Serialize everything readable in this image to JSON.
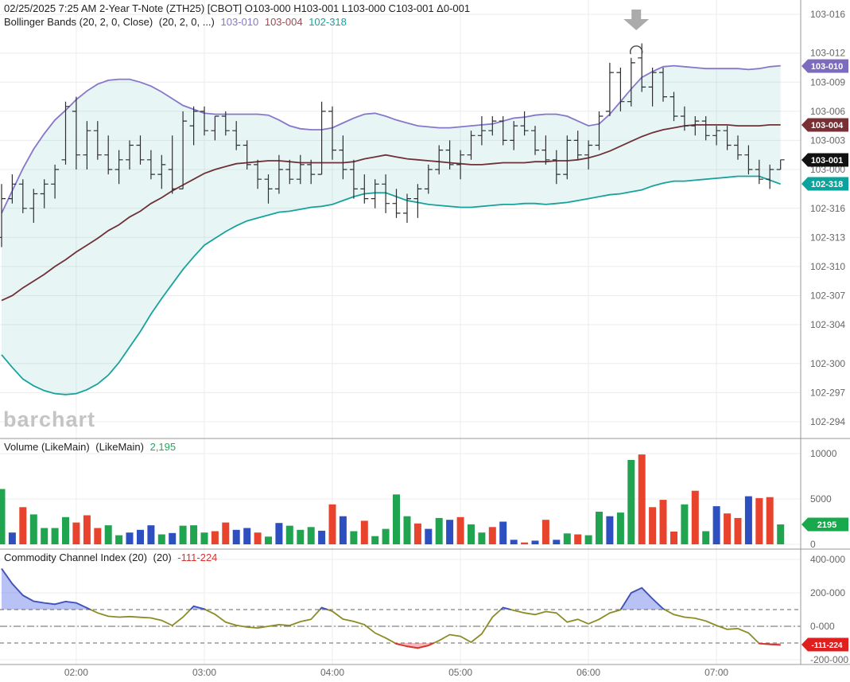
{
  "header": {
    "line1": "02/25/2025 7:25 AM 2-Year T-Note (ZTH25) [CBOT] O103-000 H103-001 L103-000 C103-001 Δ0-001",
    "bollinger_label": "Bollinger Bands (20, 2, 0, Close)",
    "bollinger_params": "(20, 2, 0, ...)",
    "bollinger_upper": "103-010",
    "bollinger_middle": "103-004",
    "bollinger_lower": "102-318"
  },
  "volume_header": {
    "label": "Volume (LikeMain)",
    "params": "(LikeMain)",
    "value": "2,195"
  },
  "cci_header": {
    "label": "Commodity Channel Index (20)",
    "params": "(20)",
    "value": "-111-224"
  },
  "watermark": "barchart",
  "colors": {
    "background": "#ffffff",
    "gridline": "#ececec",
    "divider": "#999999",
    "axis_text": "#666666",
    "bar": "#2e2e33",
    "band_upper": "#8677c9",
    "band_middle": "#6f3038",
    "band_lower": "#18a29d",
    "band_fill": "rgba(24,162,157,0.10)",
    "vol": {
      "g": "#21a450",
      "r": "#e8432c",
      "b": "#2d4fc0"
    },
    "cci_line": "#8c8c25",
    "cci_hi": "#3e53c7",
    "cci_fill_hi": "rgba(100,120,230,0.45)",
    "cci_lo": "#e02f2f",
    "cci_fill_lo": "rgba(245,110,120,0.50)",
    "badge": {
      "purple": "#7d6bbe",
      "maroon": "#7a2f35",
      "black": "#111111",
      "teal": "#0da39d",
      "green": "#17a94c",
      "red": "#e01f1f"
    },
    "arrow": "#ababab",
    "annotation": "#444444",
    "ref_dash": "#666666"
  },
  "chart_data": [
    {
      "type": "ohlc",
      "name": "price-with-bollinger-bands",
      "price_unit": "tenths of 1/32 above 102 (294 = 102-294, 320 = 103-000, 336 = 103-016); price = 102 + v/320",
      "interval": "5 min",
      "start_time": "01:25",
      "y_axis": [
        {
          "value": 336,
          "label": "103-016"
        },
        {
          "value": 332,
          "label": "103-012"
        },
        {
          "value": 329,
          "label": "103-009"
        },
        {
          "value": 326,
          "label": "103-006"
        },
        {
          "value": 323,
          "label": "103-003"
        },
        {
          "value": 320,
          "label": "103-000"
        },
        {
          "value": 316,
          "label": "102-316"
        },
        {
          "value": 313,
          "label": "102-313"
        },
        {
          "value": 310,
          "label": "102-310"
        },
        {
          "value": 307,
          "label": "102-307"
        },
        {
          "value": 304,
          "label": "102-304"
        },
        {
          "value": 300,
          "label": "102-300"
        },
        {
          "value": 297,
          "label": "102-297"
        },
        {
          "value": 294,
          "label": "102-294"
        }
      ],
      "x_hour_labels": [
        {
          "bar": 7,
          "label": "02:00"
        },
        {
          "bar": 19,
          "label": "03:00"
        },
        {
          "bar": 31,
          "label": "04:00"
        },
        {
          "bar": 43,
          "label": "05:00"
        },
        {
          "bar": 55,
          "label": "06:00"
        },
        {
          "bar": 67,
          "label": "07:00"
        }
      ],
      "badges": [
        {
          "value": 330.7,
          "label": "103-010",
          "color": "purple"
        },
        {
          "value": 324.6,
          "label": "103-004",
          "color": "maroon"
        },
        {
          "value": 321,
          "label": "103-001",
          "color": "black"
        },
        {
          "value": 318.5,
          "label": "102-318",
          "color": "teal"
        }
      ],
      "annotations": {
        "arrow_bar": 60,
        "arc_bar": 60
      },
      "bars": [
        [
          313,
          318.5,
          312,
          317
        ],
        [
          317,
          319.5,
          316.5,
          318.5
        ],
        [
          318.5,
          319,
          315.5,
          316
        ],
        [
          316,
          318,
          314.5,
          317.5
        ],
        [
          317.5,
          319,
          316,
          318.5
        ],
        [
          318.5,
          320.5,
          317,
          320
        ],
        [
          321,
          327,
          320.5,
          326.5
        ],
        [
          326,
          327.5,
          320,
          321.5
        ],
        [
          321.5,
          325,
          320,
          324
        ],
        [
          324,
          325,
          321,
          321.5
        ],
        [
          321.5,
          323.5,
          319.5,
          320
        ],
        [
          320,
          322,
          318.5,
          321
        ],
        [
          321,
          323,
          320,
          322.5
        ],
        [
          322.5,
          323.5,
          320.5,
          321
        ],
        [
          321,
          322,
          319,
          319.5
        ],
        [
          319.5,
          321.5,
          318,
          320.5
        ],
        [
          320,
          323.5,
          317.5,
          318
        ],
        [
          318,
          326,
          318,
          325
        ],
        [
          324.5,
          326.5,
          322.5,
          326
        ],
        [
          326,
          326.5,
          323.5,
          324
        ],
        [
          324,
          325.5,
          323,
          325.5
        ],
        [
          325.5,
          326,
          323.5,
          324
        ],
        [
          324,
          325,
          322,
          322.5
        ],
        [
          322.5,
          323,
          320,
          320.5
        ],
        [
          320.5,
          321,
          318,
          319
        ],
        [
          319,
          319.5,
          316.5,
          318
        ],
        [
          318,
          321.5,
          317.5,
          320
        ],
        [
          320,
          321,
          318.5,
          319
        ],
        [
          319,
          321.5,
          318.5,
          320.5
        ],
        [
          320.5,
          321,
          318.5,
          319.5
        ],
        [
          319.5,
          327,
          319.5,
          326
        ],
        [
          326,
          326.5,
          321,
          322
        ],
        [
          322,
          323.5,
          319,
          320
        ],
        [
          320,
          321,
          317,
          318
        ],
        [
          318,
          319.5,
          316.5,
          317
        ],
        [
          317,
          319,
          316,
          318.5
        ],
        [
          318.5,
          319.5,
          315.5,
          316.5
        ],
        [
          316.5,
          318,
          315,
          315.5
        ],
        [
          315.5,
          317.5,
          314.5,
          317
        ],
        [
          317,
          318.5,
          315,
          318
        ],
        [
          318,
          320.5,
          317.5,
          320
        ],
        [
          320,
          322.5,
          319.5,
          322
        ],
        [
          322,
          323,
          320,
          320.5
        ],
        [
          320.5,
          322,
          319,
          321.5
        ],
        [
          321.5,
          324,
          321,
          323.5
        ],
        [
          323.5,
          325.5,
          322.5,
          324
        ],
        [
          324,
          325.5,
          323.5,
          325
        ],
        [
          325,
          325.5,
          322.5,
          323
        ],
        [
          323,
          325,
          322,
          324.5
        ],
        [
          324.5,
          326,
          323.5,
          324
        ],
        [
          324,
          324.5,
          321.5,
          322
        ],
        [
          322,
          323.5,
          320.5,
          321
        ],
        [
          321,
          322,
          318.5,
          319.5
        ],
        [
          319.5,
          323.5,
          319,
          323
        ],
        [
          323,
          324,
          321,
          321.5
        ],
        [
          321.5,
          323,
          320,
          322.5
        ],
        [
          322.5,
          326,
          322,
          325.5
        ],
        [
          326,
          331,
          325.5,
          330
        ],
        [
          330,
          330.5,
          326,
          327
        ],
        [
          327,
          331.5,
          326.5,
          331
        ],
        [
          331.5,
          333,
          328,
          328.5
        ],
        [
          328.5,
          330.5,
          326.5,
          330
        ],
        [
          330,
          330.5,
          327,
          327.5
        ],
        [
          327.5,
          328,
          325,
          325.5
        ],
        [
          325.5,
          326.5,
          324,
          324.5
        ],
        [
          324.5,
          325.5,
          323.5,
          325
        ],
        [
          325,
          325.5,
          323,
          323.5
        ],
        [
          323.5,
          324.5,
          322.5,
          324
        ],
        [
          324,
          324.5,
          322,
          322.5
        ],
        [
          322.5,
          323.5,
          321,
          321.5
        ],
        [
          321.5,
          322.5,
          319.5,
          320
        ],
        [
          320,
          321,
          318.5,
          319
        ],
        [
          319,
          320.5,
          318,
          320
        ],
        [
          320,
          321,
          320,
          321
        ]
      ],
      "bands": {
        "upper": [
          315.5,
          317.8,
          320.1,
          322.1,
          323.7,
          325.1,
          326.1,
          327.2,
          328.1,
          328.8,
          329.2,
          329.3,
          329.3,
          329,
          328.6,
          328,
          327.3,
          326.6,
          326.2,
          325.8,
          325.7,
          325.7,
          325.7,
          325.7,
          325.7,
          325.6,
          325.1,
          324.5,
          324.2,
          324.1,
          324.1,
          324.3,
          324.8,
          325.3,
          325.7,
          325.8,
          325.5,
          325.1,
          324.8,
          324.5,
          324.4,
          324.3,
          324.3,
          324.4,
          324.5,
          324.6,
          324.7,
          325,
          325.3,
          325.4,
          325.6,
          325.7,
          325.7,
          325.5,
          325,
          324.5,
          324.7,
          325.7,
          327,
          328.3,
          329.5,
          330.1,
          330.6,
          330.7,
          330.6,
          330.5,
          330.4,
          330.4,
          330.4,
          330.4,
          330.3,
          330.4,
          330.6,
          330.7
        ],
        "middle": [
          306.5,
          307,
          307.8,
          308.5,
          309.2,
          310,
          310.7,
          311.5,
          312.2,
          312.9,
          313.7,
          314.3,
          315.1,
          315.7,
          316.5,
          317.1,
          317.8,
          318.4,
          319,
          319.6,
          320,
          320.3,
          320.6,
          320.7,
          320.8,
          320.9,
          320.9,
          320.8,
          320.7,
          320.7,
          320.7,
          320.7,
          320.7,
          320.8,
          321.1,
          321.3,
          321.5,
          321.3,
          321.1,
          321,
          320.9,
          320.8,
          320.7,
          320.6,
          320.5,
          320.5,
          320.6,
          320.7,
          320.7,
          320.7,
          320.8,
          320.8,
          320.9,
          320.9,
          321,
          321.2,
          321.5,
          321.9,
          322.4,
          322.9,
          323.4,
          323.8,
          324.1,
          324.3,
          324.5,
          324.6,
          324.6,
          324.6,
          324.6,
          324.5,
          324.5,
          324.5,
          324.6,
          324.6
        ],
        "lower": [
          300.9,
          299.6,
          298.4,
          297.7,
          297.2,
          296.9,
          296.8,
          296.9,
          297.3,
          297.9,
          298.8,
          300.1,
          301.7,
          303.3,
          305.1,
          306.7,
          308.2,
          309.7,
          311,
          312.2,
          312.9,
          313.6,
          314.2,
          314.7,
          315,
          315.3,
          315.6,
          315.7,
          315.9,
          316.1,
          316.2,
          316.4,
          316.8,
          317.2,
          317.5,
          317.6,
          317.6,
          317.2,
          316.8,
          316.6,
          316.4,
          316.3,
          316.2,
          316.1,
          316.1,
          316.2,
          316.3,
          316.4,
          316.4,
          316.5,
          316.5,
          316.4,
          316.5,
          316.6,
          316.8,
          317,
          317.2,
          317.4,
          317.5,
          317.7,
          317.9,
          318.3,
          318.6,
          318.8,
          318.8,
          318.9,
          319,
          319.1,
          319.2,
          319.3,
          319.3,
          319.3,
          318.9,
          318.5
        ]
      }
    },
    {
      "type": "bar",
      "name": "volume",
      "y_axis": [
        10000,
        5000,
        0
      ],
      "badge": {
        "value": 2195,
        "label": "2195"
      },
      "values": [
        6100,
        1300,
        4100,
        3300,
        1800,
        1800,
        3000,
        2400,
        3200,
        1800,
        2100,
        1000,
        1300,
        1600,
        2100,
        1100,
        1250,
        2050,
        2100,
        1300,
        1450,
        2400,
        1600,
        1800,
        1300,
        850,
        2350,
        2050,
        1600,
        1900,
        1500,
        4400,
        3100,
        1450,
        2600,
        900,
        1700,
        5500,
        3100,
        2300,
        1700,
        2900,
        2700,
        3000,
        2200,
        1300,
        1900,
        2500,
        500,
        200,
        400,
        2700,
        500,
        1200,
        1100,
        1000,
        3600,
        3100,
        3500,
        9300,
        9900,
        4100,
        4900,
        1400,
        4400,
        5900,
        1450,
        4200,
        3400,
        2900,
        5300,
        5100,
        5200,
        2195
      ],
      "bar_colors": [
        "g",
        "b",
        "r",
        "g",
        "g",
        "g",
        "g",
        "r",
        "r",
        "r",
        "g",
        "g",
        "b",
        "b",
        "b",
        "g",
        "b",
        "g",
        "g",
        "g",
        "r",
        "r",
        "b",
        "b",
        "r",
        "g",
        "b",
        "g",
        "g",
        "g",
        "b",
        "r",
        "b",
        "g",
        "r",
        "g",
        "g",
        "g",
        "g",
        "r",
        "b",
        "g",
        "b",
        "r",
        "g",
        "g",
        "r",
        "b",
        "b",
        "r",
        "b",
        "r",
        "b",
        "g",
        "r",
        "g",
        "g",
        "b",
        "g",
        "g",
        "r",
        "r",
        "r",
        "r",
        "g",
        "r",
        "g",
        "b",
        "r",
        "r",
        "b",
        "r",
        "r",
        "g"
      ]
    },
    {
      "type": "line",
      "name": "commodity-channel-index",
      "y_axis": [
        {
          "value": 400,
          "label": "400-000"
        },
        {
          "value": 200,
          "label": "200-000"
        },
        {
          "value": 0,
          "label": "0-000"
        },
        {
          "value": -200,
          "label": "-200-000"
        }
      ],
      "ref_lines": [
        100,
        0,
        -100
      ],
      "badge": {
        "value": -111.224,
        "label": "-111-224"
      },
      "values": [
        345,
        255,
        185,
        150,
        140,
        132,
        148,
        140,
        110,
        80,
        60,
        55,
        58,
        54,
        50,
        35,
        5,
        55,
        120,
        103,
        72,
        25,
        6,
        -5,
        -10,
        0,
        10,
        5,
        28,
        42,
        112,
        90,
        43,
        29,
        10,
        -40,
        -70,
        -105,
        -120,
        -130,
        -115,
        -85,
        -50,
        -60,
        -95,
        -45,
        55,
        112,
        95,
        80,
        70,
        88,
        80,
        25,
        42,
        15,
        42,
        80,
        98,
        200,
        230,
        165,
        105,
        70,
        55,
        48,
        32,
        5,
        -18,
        -14,
        -40,
        -103,
        -108,
        -111.22
      ]
    }
  ]
}
